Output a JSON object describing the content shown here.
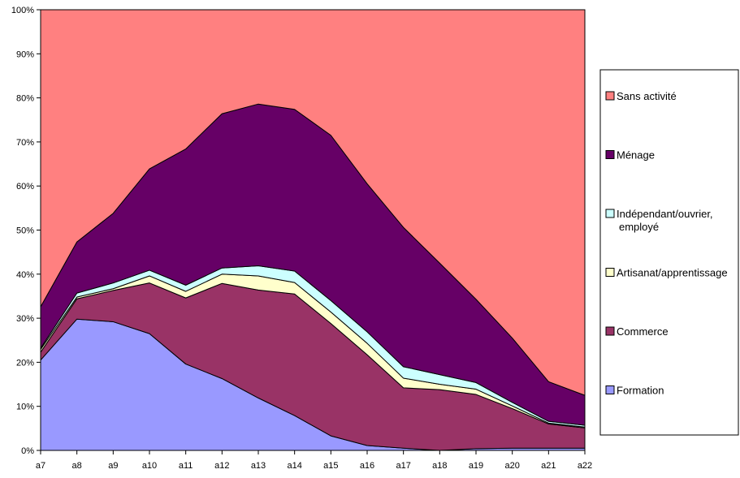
{
  "chart_data": {
    "type": "area",
    "stacked": "percent",
    "categories": [
      "a7",
      "a8",
      "a9",
      "a10",
      "a11",
      "a12",
      "a13",
      "a14",
      "a15",
      "a16",
      "a17",
      "a18",
      "a19",
      "a20",
      "a21",
      "a22"
    ],
    "series": [
      {
        "name": "Formation",
        "color": "#9999ff",
        "values": [
          20.5,
          29.8,
          29.2,
          26.5,
          19.6,
          16.3,
          11.9,
          7.9,
          3.3,
          1.1,
          0.5,
          0,
          0.4,
          0.5,
          0.5,
          0.5
        ]
      },
      {
        "name": "Commerce",
        "color": "#993366",
        "values": [
          1.8,
          4.6,
          7.1,
          11.5,
          15.0,
          21.6,
          24.5,
          27.6,
          25.5,
          20.6,
          13.7,
          13.8,
          12.3,
          9.0,
          5.5,
          4.6
        ]
      },
      {
        "name": "Artisanat/apprentissage",
        "color": "#ffffcc",
        "values": [
          0.6,
          0.4,
          0.4,
          1.6,
          1.5,
          2.1,
          3.2,
          2.6,
          2.6,
          2.6,
          2.2,
          1.2,
          1.2,
          0.6,
          0.2,
          0.2
        ]
      },
      {
        "name": "Indépendant/ouvrier, employé",
        "color": "#ccffff",
        "values": [
          0.3,
          0.9,
          1.3,
          1.3,
          1.4,
          1.4,
          2.3,
          2.6,
          2.6,
          2.6,
          2.6,
          2.2,
          1.5,
          0.8,
          0.4,
          0.4
        ]
      },
      {
        "name": "Ménage",
        "color": "#660066",
        "values": [
          9.4,
          11.6,
          15.8,
          23.0,
          30.9,
          35.0,
          36.7,
          36.7,
          37.5,
          33.6,
          31.6,
          25.3,
          18.9,
          14.6,
          9.0,
          6.8
        ]
      },
      {
        "name": "Sans activité",
        "color": "#ff8080",
        "values": [
          67.4,
          52.7,
          46.2,
          36.1,
          31.6,
          23.6,
          21.4,
          22.6,
          28.5,
          39.5,
          49.4,
          57.5,
          65.7,
          74.5,
          84.4,
          87.5
        ]
      }
    ],
    "legend_order": [
      "Sans activité",
      "Ménage",
      "Indépendant/ouvrier, employé",
      "Artisanat/apprentissage",
      "Commerce",
      "Formation"
    ],
    "legend_lines": {
      "Indépendant/ouvrier, employé": [
        "Indépendant/ouvrier,",
        "employé"
      ]
    },
    "y_ticks": [
      "0%",
      "10%",
      "20%",
      "30%",
      "40%",
      "50%",
      "60%",
      "70%",
      "80%",
      "90%",
      "100%"
    ],
    "ylim": [
      0,
      100
    ],
    "title": "",
    "xlabel": "",
    "ylabel": "",
    "grid": false,
    "legend_position": "right"
  }
}
